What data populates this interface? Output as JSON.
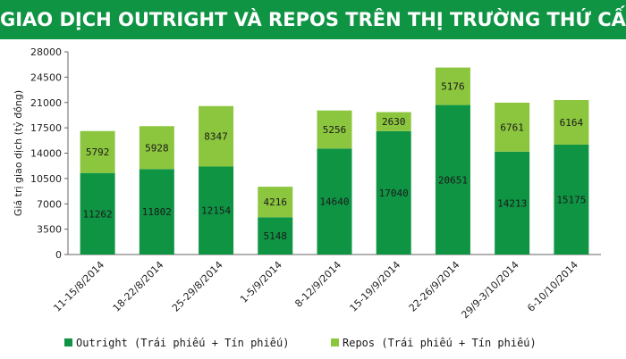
{
  "title": "GIAO DỊCH OUTRIGHT VÀ REPOS TRÊN THỊ TRƯỜNG THỨ CẤP",
  "colors": {
    "banner": "#0f9444",
    "outright": "#0f9444",
    "repos": "#8cc63f",
    "axis": "#666666",
    "grid": "#cccccc"
  },
  "chart_data": {
    "type": "bar",
    "stacked": true,
    "ylabel": "Giá trị giao dịch (tỷ đồng)",
    "ylim": [
      0,
      28000
    ],
    "yticks": [
      0,
      3500,
      7000,
      10500,
      14000,
      17500,
      21000,
      24500,
      28000
    ],
    "grid": false,
    "legend": "bottom",
    "categories": [
      "11-15/8/2014",
      "18-22/8/2014",
      "25-29/8/2014",
      "1-5/9/2014",
      "8-12/9/2014",
      "15-19/9/2014",
      "22-26/9/2014",
      "29/9-3/10/2014",
      "6-10/10/2014"
    ],
    "series": [
      {
        "name": "Outright (Trái phiếu + Tín phiếu)",
        "values": [
          11262,
          11802,
          12154,
          5148,
          14640,
          17040,
          20651,
          14213,
          15175
        ]
      },
      {
        "name": "Repos (Trái phiếu + Tín phiếu)",
        "values": [
          5792,
          5928,
          8347,
          4216,
          5256,
          2630,
          5176,
          6761,
          6164
        ]
      }
    ]
  }
}
